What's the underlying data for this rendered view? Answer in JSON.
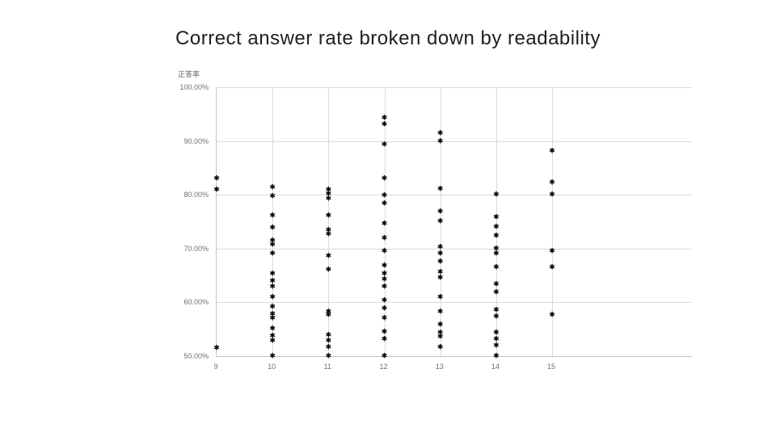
{
  "title": "Correct answer rate broken down by readability",
  "marker_glyph": "✱",
  "colors": {
    "background": "#ffffff",
    "title": "#1f1f1f",
    "tick_label": "#6f6f6f",
    "gridline": "#dadada",
    "axis": "#c4c4c4",
    "marker": "#000000"
  },
  "chart_data": {
    "type": "scatter",
    "title": "Correct answer rate broken down by readability",
    "y_axis_title": "正答率",
    "xlabel": "",
    "ylabel": "正答率",
    "x_tick_labels": [
      "9",
      "10",
      "11",
      "12",
      "13",
      "14",
      "15"
    ],
    "x_tick_values": [
      9,
      10,
      11,
      12,
      13,
      14,
      15
    ],
    "y_tick_labels": [
      "100.00%",
      "90.00%",
      "80.00%",
      "70.00%",
      "60.00%",
      "50.00%"
    ],
    "y_tick_values": [
      100,
      90,
      80,
      70,
      60,
      50
    ],
    "xlim": [
      9,
      17.5
    ],
    "ylim": [
      50,
      100
    ],
    "grid": true,
    "legend": false,
    "units": "percent",
    "series": [
      {
        "x": 9,
        "values": [
          83.0,
          81.0,
          51.5
        ]
      },
      {
        "x": 10,
        "values": [
          81.4,
          79.8,
          76.1,
          73.9,
          71.5,
          70.7,
          69.0,
          65.3,
          63.9,
          62.9,
          61.0,
          59.2,
          57.8,
          57.0,
          55.1,
          53.7,
          52.9,
          50.0
        ]
      },
      {
        "x": 11,
        "values": [
          81.0,
          80.2,
          79.3,
          76.1,
          73.4,
          72.7,
          68.6,
          66.0,
          58.3,
          57.6,
          53.9,
          52.9,
          51.7,
          50.0
        ]
      },
      {
        "x": 12,
        "values": [
          94.3,
          93.1,
          89.4,
          83.1,
          79.9,
          78.4,
          74.6,
          71.9,
          69.5,
          66.8,
          65.3,
          64.2,
          62.9,
          60.4,
          58.8,
          57.0,
          54.5,
          53.2,
          50.0
        ]
      },
      {
        "x": 13,
        "values": [
          91.4,
          90.0,
          81.1,
          76.9,
          75.1,
          70.2,
          69.0,
          67.5,
          65.6,
          64.5,
          61.0,
          58.2,
          55.9,
          54.4,
          53.6,
          51.7
        ]
      },
      {
        "x": 14,
        "values": [
          80.0,
          75.8,
          74.0,
          72.3,
          70.0,
          69.0,
          66.5,
          63.3,
          61.8,
          58.5,
          57.4,
          54.4,
          53.1,
          52.0,
          50.0
        ]
      },
      {
        "x": 15,
        "values": [
          88.2,
          82.3,
          80.0,
          69.5,
          66.5,
          57.7
        ]
      }
    ]
  }
}
